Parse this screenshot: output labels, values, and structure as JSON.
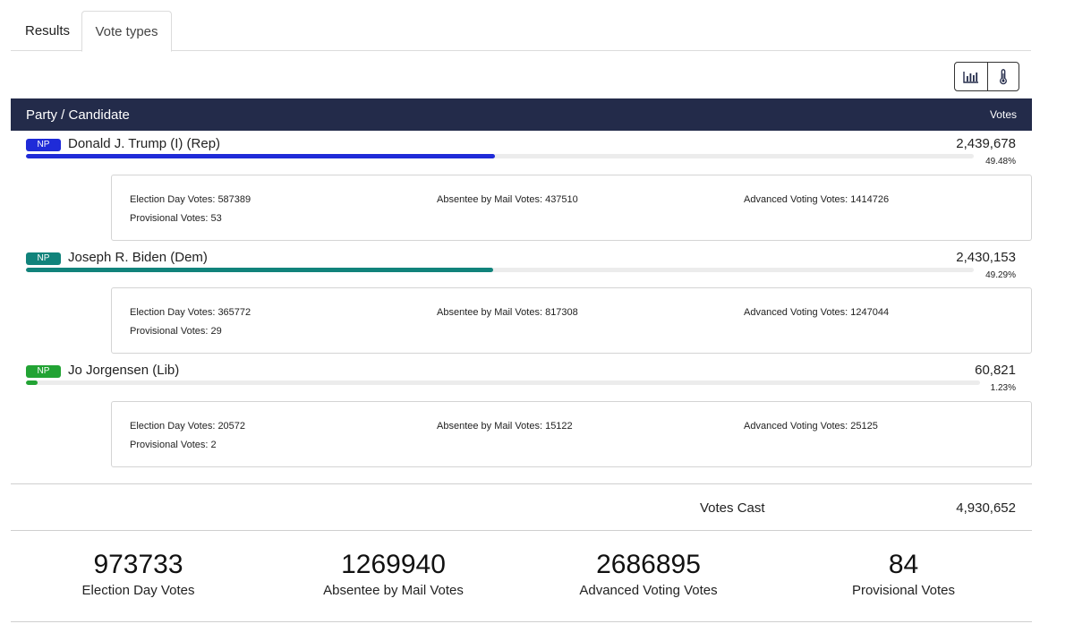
{
  "tabs": [
    {
      "label": "Results",
      "active": false
    },
    {
      "label": "Vote types",
      "active": true
    }
  ],
  "view_toggle": [
    {
      "icon": "bar-chart-icon"
    },
    {
      "icon": "thermometer-icon"
    }
  ],
  "table_header": {
    "left": "Party / Candidate",
    "right": "Votes"
  },
  "candidates": [
    {
      "badge": "NP",
      "badge_color": "#1f2bd8",
      "name": "Donald J. Trump (I) (Rep)",
      "votes": "2,439,678",
      "percent": "49.48%",
      "share": 0.4948,
      "details": {
        "election_day": "Election Day Votes: 587389",
        "absentee": "Absentee by Mail Votes: 437510",
        "advanced": "Advanced Voting Votes: 1414726",
        "provisional": "Provisional Votes: 53"
      }
    },
    {
      "badge": "NP",
      "badge_color": "#11837b",
      "name": "Joseph R. Biden (Dem)",
      "votes": "2,430,153",
      "percent": "49.29%",
      "share": 0.4929,
      "details": {
        "election_day": "Election Day Votes: 365772",
        "absentee": "Absentee by Mail Votes: 817308",
        "advanced": "Advanced Voting Votes: 1247044",
        "provisional": "Provisional Votes: 29"
      }
    },
    {
      "badge": "NP",
      "badge_color": "#22a334",
      "name": "Jo Jorgensen (Lib)",
      "votes": "60,821",
      "percent": "1.23%",
      "share": 0.0123,
      "details": {
        "election_day": "Election Day Votes: 20572",
        "absentee": "Absentee by Mail Votes: 15122",
        "advanced": "Advanced Voting Votes: 25125",
        "provisional": "Provisional Votes: 2"
      }
    }
  ],
  "votes_cast": {
    "label": "Votes Cast",
    "value": "4,930,652"
  },
  "summary": [
    {
      "value": "973733",
      "label": "Election Day Votes"
    },
    {
      "value": "1269940",
      "label": "Absentee by Mail Votes"
    },
    {
      "value": "2686895",
      "label": "Advanced Voting Votes"
    },
    {
      "value": "84",
      "label": "Provisional Votes"
    }
  ]
}
